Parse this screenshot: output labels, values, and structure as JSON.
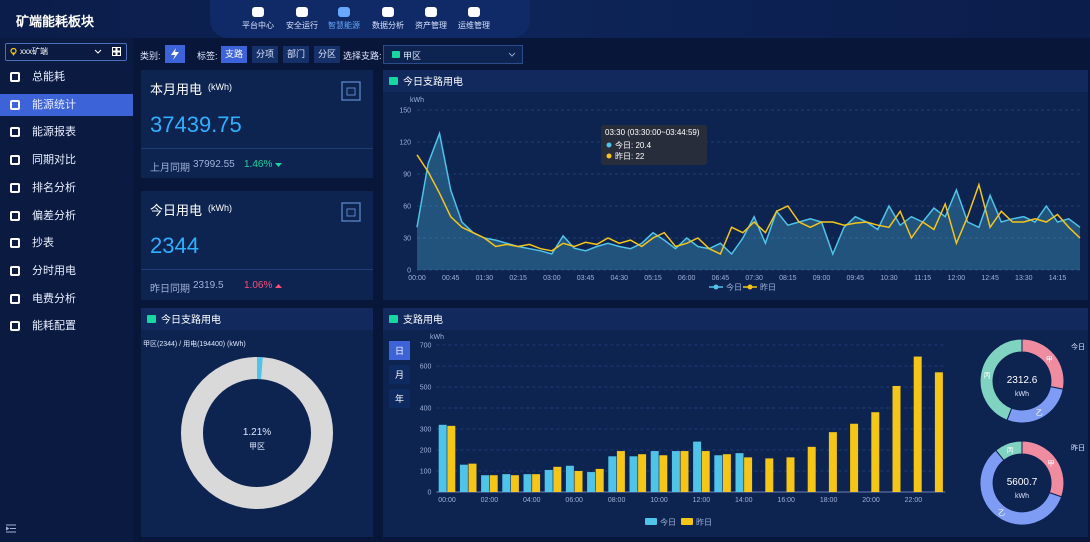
{
  "header": {
    "title": "矿端能耗板块",
    "nav": [
      "平台中心",
      "安全运行",
      "智慧能源",
      "数据分析",
      "资产管理",
      "运维管理"
    ],
    "active_nav": 2
  },
  "sidebar": {
    "mine": "xxx矿端",
    "menu": [
      "总能耗",
      "能源统计",
      "能源报表",
      "同期对比",
      "排名分析",
      "偏差分析",
      "抄表",
      "分时用电",
      "电费分析",
      "能耗配置"
    ],
    "active": 1
  },
  "filters": {
    "category_label": "类别:",
    "tag_label": "标签:",
    "tags": [
      "支路",
      "分项",
      "部门",
      "分区"
    ],
    "active_tag": 0,
    "branch_label": "选择支路:",
    "branch": "甲区"
  },
  "cards": [
    {
      "title": "本月用电",
      "unit": "(kWh)",
      "value": 37439.75,
      "compare_label": "上月同期",
      "compare_value": 37992.55,
      "change": "1.46%",
      "trend": "down"
    },
    {
      "title": "今日用电",
      "unit": "(kWh)",
      "value": 2344,
      "compare_label": "昨日同期",
      "compare_value": 2319.5,
      "change": "1.06%",
      "trend": "up"
    }
  ],
  "chart_data": [
    {
      "type": "line",
      "title": "今日支路用电",
      "y_label": "kWh",
      "categories": [
        "00:00",
        null,
        null,
        "00:45",
        null,
        null,
        "01:30",
        null,
        null,
        "02:15",
        null,
        null,
        "03:00",
        null,
        null,
        "03:45",
        null,
        null,
        "04:30",
        null,
        null,
        "05:15",
        null,
        null,
        "06:00",
        null,
        null,
        "06:45",
        null,
        null,
        "07:30",
        null,
        null,
        "08:15",
        null,
        null,
        "09:00",
        null,
        null,
        "09:45",
        null,
        null,
        "10:30",
        null,
        null,
        "11:15",
        null,
        null,
        "12:00",
        null,
        null,
        "12:45",
        null,
        null,
        "13:30",
        null,
        null,
        "14:15",
        null,
        null
      ],
      "series": [
        {
          "name": "今日",
          "color": "#4fc3e8",
          "area": true,
          "values": [
            40,
            100,
            128,
            75,
            45,
            35,
            30,
            28,
            25,
            22,
            20,
            18,
            15,
            32,
            20.4,
            18,
            22,
            25,
            22,
            20,
            25,
            35,
            28,
            20,
            30,
            22,
            20,
            25,
            15,
            30,
            50,
            25,
            55,
            42,
            45,
            48,
            45,
            15,
            40,
            50,
            45,
            38,
            60,
            42,
            50,
            45,
            58,
            50,
            75,
            45,
            40,
            70,
            45,
            48,
            50,
            45,
            60,
            45,
            48,
            40
          ]
        },
        {
          "name": "昨日",
          "color": "#f5c518",
          "area": false,
          "values": [
            108,
            92,
            72,
            50,
            40,
            35,
            30,
            22,
            24,
            22,
            24,
            20,
            18,
            25,
            22,
            26,
            24,
            30,
            25,
            28,
            22,
            30,
            35,
            22,
            25,
            30,
            20,
            15,
            40,
            35,
            45,
            35,
            55,
            60,
            45,
            40,
            45,
            45,
            42,
            44,
            45,
            42,
            40,
            55,
            30,
            45,
            38,
            62,
            25,
            50,
            80,
            40,
            55,
            45,
            45,
            48,
            45,
            52,
            40,
            30
          ]
        }
      ],
      "ylim": [
        0,
        150
      ],
      "yticks": [
        0,
        30,
        60,
        90,
        120,
        150
      ],
      "grid": true,
      "tooltip": {
        "index": 14,
        "title": "03:30 (03:30:00~03:44:59)",
        "lines": [
          "今日: 20.4",
          "昨日: 22"
        ]
      }
    },
    {
      "type": "donut",
      "title": "今日支路用电",
      "subtitle": "甲区(2344) / 用电(194400) (kWh)",
      "values": [
        1.21
      ],
      "value_labels": [
        "1.21%"
      ],
      "center_label": "甲区",
      "color": "#4fc3e8",
      "track_color": "#d9d9d9"
    },
    {
      "type": "bar",
      "title": "支路用电",
      "y_label": "kWh",
      "periods": [
        "日",
        "月",
        "年"
      ],
      "active_period": 0,
      "categories": [
        "00:00",
        null,
        "02:00",
        null,
        "04:00",
        null,
        "06:00",
        null,
        "08:00",
        null,
        "10:00",
        null,
        "12:00",
        null,
        "14:00",
        null,
        "16:00",
        null,
        "18:00",
        null,
        "20:00",
        null,
        "22:00",
        null
      ],
      "series": [
        {
          "name": "今日",
          "color": "#4fc3e8",
          "values": [
            320,
            130,
            80,
            85,
            85,
            105,
            125,
            95,
            170,
            170,
            195,
            195,
            240,
            175,
            185,
            null,
            null,
            null,
            null,
            null,
            null,
            null,
            null,
            null
          ]
        },
        {
          "name": "昨日",
          "color": "#f5c518",
          "values": [
            315,
            135,
            80,
            80,
            85,
            120,
            100,
            110,
            195,
            180,
            175,
            195,
            195,
            180,
            165,
            160,
            165,
            215,
            285,
            325,
            380,
            505,
            645,
            570
          ]
        }
      ],
      "ylim": [
        0,
        700
      ],
      "yticks": [
        0,
        100,
        200,
        300,
        400,
        500,
        600,
        700
      ],
      "grid": true
    },
    {
      "type": "donut",
      "label": "今日",
      "total": 2312.6,
      "unit": "kWh",
      "categories": [
        "甲",
        "乙",
        "丙"
      ],
      "values": [
        650,
        640,
        1022
      ],
      "colors": [
        "#f08ca0",
        "#7f9cf5",
        "#7fd3c0"
      ]
    },
    {
      "type": "donut",
      "label": "昨日",
      "total": 5600.7,
      "unit": "kWh",
      "categories": [
        "甲",
        "乙",
        "丙"
      ],
      "values": [
        1700,
        3300,
        600
      ],
      "colors": [
        "#f08ca0",
        "#7f9cf5",
        "#7fd3c0"
      ]
    }
  ]
}
